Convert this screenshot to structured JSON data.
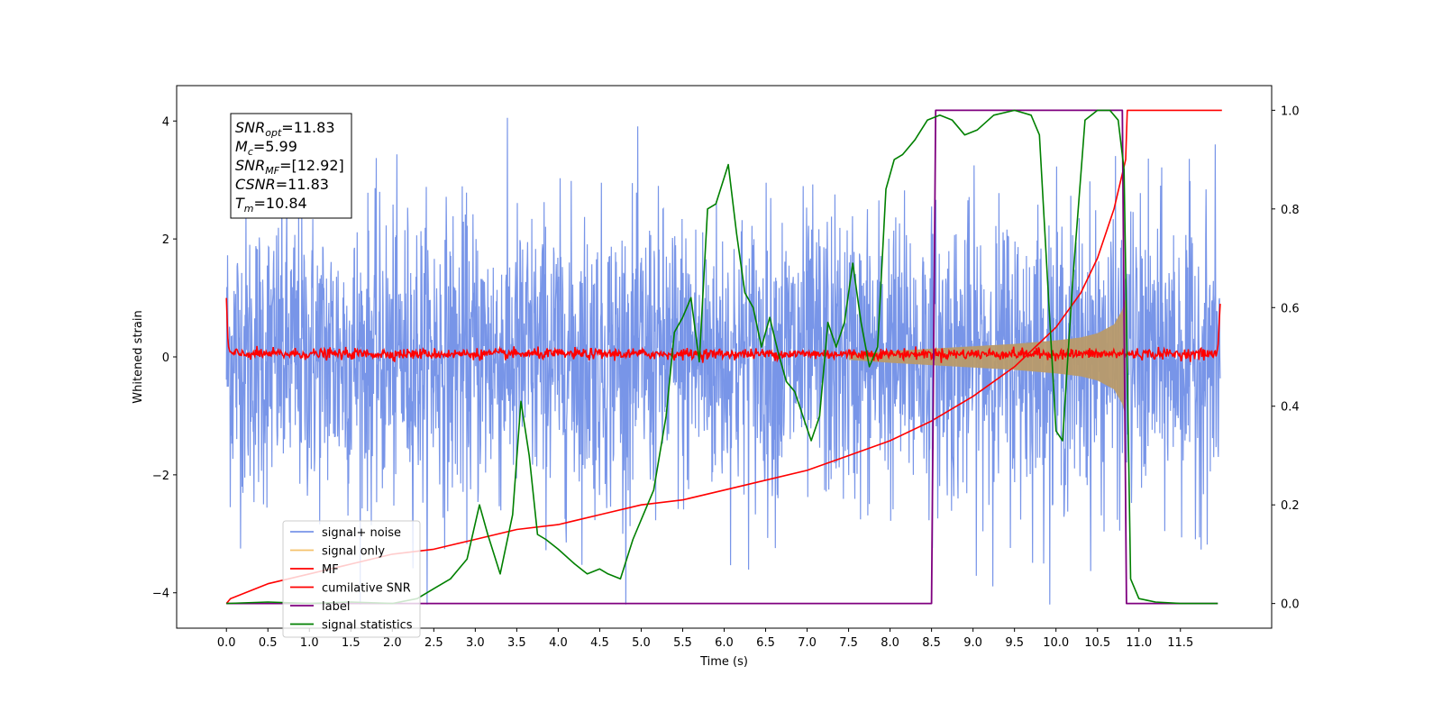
{
  "chart_data": {
    "type": "line",
    "xlabel": "Time (s)",
    "ylabel": "Whitened strain",
    "xlim": [
      -0.6,
      12.6
    ],
    "ylim": [
      -4.6,
      4.6
    ],
    "y2lim": [
      -0.05,
      1.05
    ],
    "x_ticks": [
      0.0,
      0.5,
      1.0,
      1.5,
      2.0,
      2.5,
      3.0,
      3.5,
      4.0,
      4.5,
      5.0,
      5.5,
      6.0,
      6.5,
      7.0,
      7.5,
      8.0,
      8.5,
      9.0,
      9.5,
      10.0,
      10.5,
      11.0,
      11.5
    ],
    "x_tick_labels": [
      "0.0",
      "0.5",
      "1.0",
      "1.5",
      "2.0",
      "2.5",
      "3.0",
      "3.5",
      "4.0",
      "4.5",
      "5.0",
      "5.5",
      "6.0",
      "6.5",
      "7.0",
      "7.5",
      "8.0",
      "8.5",
      "9.0",
      "9.5",
      "10.0",
      "10.5",
      "11.0",
      "11.5"
    ],
    "y_ticks": [
      -4,
      -2,
      0,
      2,
      4
    ],
    "y_tick_labels": [
      "−4",
      "−2",
      "0",
      "2",
      "4"
    ],
    "y2_ticks": [
      0.0,
      0.2,
      0.4,
      0.6,
      0.8,
      1.0
    ],
    "y2_tick_labels": [
      "0.0",
      "0.2",
      "0.4",
      "0.6",
      "0.8",
      "1.0"
    ],
    "grid": false,
    "legend_position": "lower-left",
    "info_box": {
      "position": "top-left",
      "lines": [
        {
          "main": "SNR",
          "sub": "opt",
          "value": "=11.83"
        },
        {
          "main": "M",
          "sub": "c",
          "value": "=5.99"
        },
        {
          "main": "SNR",
          "sub": "MF",
          "value": "=[12.92]"
        },
        {
          "main": "CSNR",
          "sub": "",
          "value": "=11.83"
        },
        {
          "main": "T",
          "sub": "m",
          "value": "=10.84"
        }
      ]
    },
    "series": [
      {
        "name": "signal+ noise",
        "color": "#7895e8",
        "axis": "left",
        "description": "noisy whitened strain, amplitude roughly ±2 to ±4 over 0–12 s",
        "x_range": [
          0.0,
          11.98
        ],
        "typical_envelope": 2.6
      },
      {
        "name": "signal only",
        "color": "#f5c26b",
        "axis": "left",
        "description": "chirp waveform growing in amplitude until merger",
        "x": [
          7.5,
          8.0,
          8.5,
          9.0,
          9.5,
          10.0,
          10.3,
          10.5,
          10.7,
          10.8,
          10.84
        ],
        "amplitude": [
          0.05,
          0.1,
          0.14,
          0.18,
          0.22,
          0.28,
          0.33,
          0.4,
          0.55,
          0.8,
          1.0
        ]
      },
      {
        "name": "MF",
        "color": "#ff0000",
        "axis": "left",
        "description": "matched filter output near zero with spikes at edges",
        "x": [
          0.0,
          0.02,
          0.05,
          11.95,
          11.98
        ],
        "y": [
          1.0,
          0.2,
          0.05,
          0.1,
          0.9
        ]
      },
      {
        "name": "cumilative SNR",
        "color": "#ff0000",
        "axis": "right",
        "x": [
          0.0,
          0.05,
          0.5,
          1.0,
          1.5,
          2.0,
          2.5,
          3.0,
          3.5,
          4.0,
          4.5,
          5.0,
          5.5,
          6.0,
          6.5,
          7.0,
          7.5,
          8.0,
          8.5,
          9.0,
          9.5,
          10.0,
          10.3,
          10.5,
          10.7,
          10.84,
          10.86,
          12.0
        ],
        "y": [
          0.0,
          0.01,
          0.04,
          0.06,
          0.08,
          0.1,
          0.11,
          0.13,
          0.15,
          0.16,
          0.18,
          0.2,
          0.21,
          0.23,
          0.25,
          0.27,
          0.3,
          0.33,
          0.37,
          0.42,
          0.48,
          0.56,
          0.63,
          0.7,
          0.8,
          0.9,
          1.0,
          1.0
        ]
      },
      {
        "name": "label",
        "color": "#7f007f",
        "axis": "right",
        "x": [
          0.0,
          8.5,
          8.55,
          10.8,
          10.85,
          11.95
        ],
        "y": [
          0.0,
          0.0,
          1.0,
          1.0,
          0.0,
          0.0
        ]
      },
      {
        "name": "signal statistics",
        "color": "#008000",
        "axis": "right",
        "x": [
          0.0,
          0.5,
          1.0,
          1.5,
          2.0,
          2.3,
          2.5,
          2.7,
          2.9,
          3.05,
          3.15,
          3.3,
          3.45,
          3.55,
          3.65,
          3.75,
          3.85,
          4.0,
          4.2,
          4.35,
          4.5,
          4.6,
          4.75,
          4.9,
          5.0,
          5.15,
          5.3,
          5.4,
          5.5,
          5.6,
          5.7,
          5.8,
          5.9,
          6.05,
          6.15,
          6.25,
          6.35,
          6.45,
          6.55,
          6.65,
          6.75,
          6.85,
          6.95,
          7.05,
          7.15,
          7.25,
          7.35,
          7.45,
          7.55,
          7.65,
          7.75,
          7.85,
          7.95,
          8.05,
          8.15,
          8.3,
          8.45,
          8.6,
          8.75,
          8.9,
          9.05,
          9.25,
          9.5,
          9.7,
          9.8,
          9.9,
          10.0,
          10.08,
          10.2,
          10.35,
          10.5,
          10.65,
          10.75,
          10.82,
          10.9,
          11.0,
          11.2,
          11.5,
          11.95
        ],
        "y": [
          0.0,
          0.003,
          0.0,
          0.003,
          0.0,
          0.01,
          0.03,
          0.05,
          0.09,
          0.2,
          0.14,
          0.06,
          0.18,
          0.41,
          0.3,
          0.14,
          0.13,
          0.11,
          0.08,
          0.06,
          0.07,
          0.06,
          0.05,
          0.13,
          0.17,
          0.23,
          0.38,
          0.55,
          0.58,
          0.62,
          0.49,
          0.8,
          0.81,
          0.89,
          0.75,
          0.63,
          0.6,
          0.52,
          0.58,
          0.51,
          0.45,
          0.43,
          0.38,
          0.33,
          0.38,
          0.57,
          0.52,
          0.57,
          0.69,
          0.57,
          0.48,
          0.52,
          0.84,
          0.9,
          0.91,
          0.94,
          0.98,
          0.99,
          0.98,
          0.95,
          0.96,
          0.99,
          1.0,
          0.99,
          0.95,
          0.65,
          0.35,
          0.33,
          0.65,
          0.98,
          1.0,
          1.0,
          0.98,
          0.88,
          0.05,
          0.01,
          0.003,
          0.0,
          0.0
        ]
      }
    ]
  }
}
